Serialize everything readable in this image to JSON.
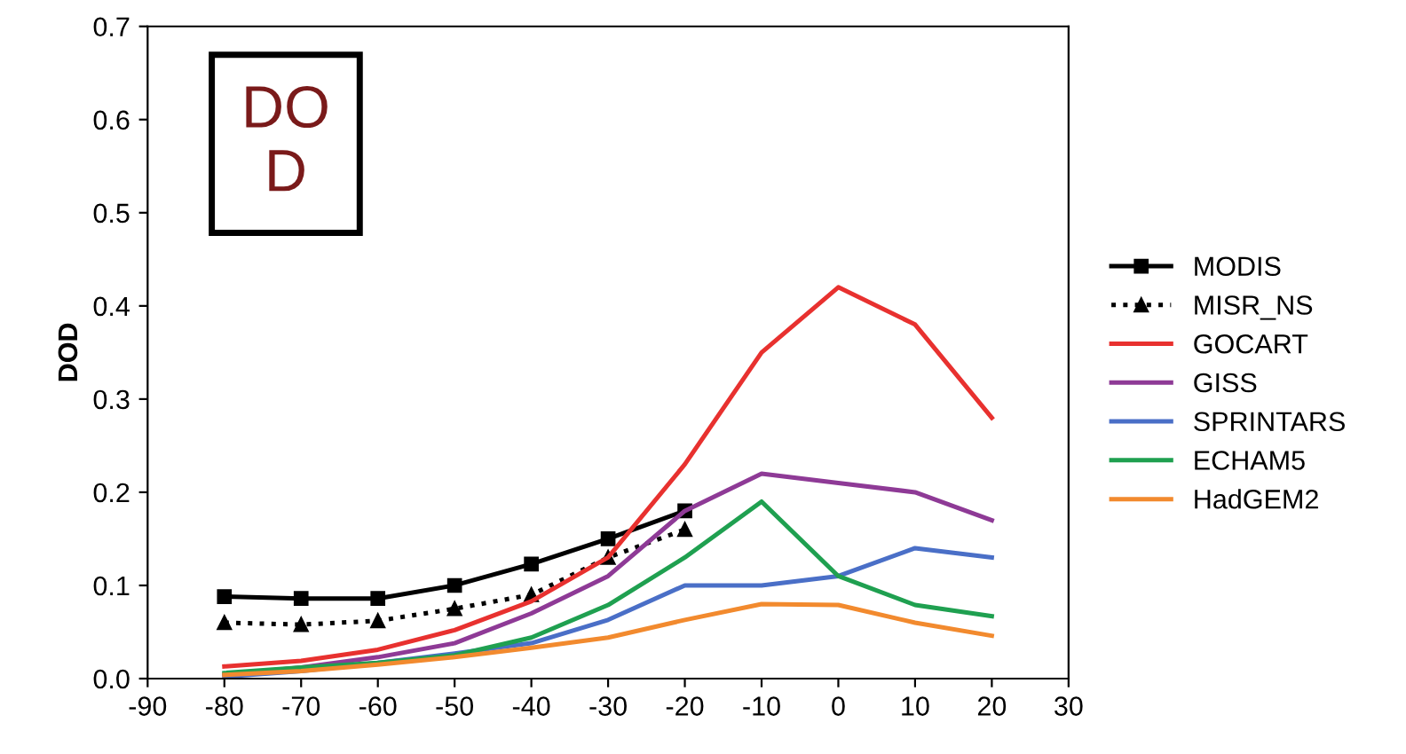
{
  "chart_data": {
    "type": "line",
    "ylabel": "DOD",
    "x": [
      -80,
      -70,
      -60,
      -50,
      -40,
      -30,
      -20,
      -10,
      0,
      10,
      20
    ],
    "xlim": [
      -90,
      30
    ],
    "xticks": [
      -90,
      -80,
      -70,
      -60,
      -50,
      -40,
      -30,
      -20,
      -10,
      0,
      10,
      20,
      30
    ],
    "ylim": [
      0,
      0.7
    ],
    "yticks": [
      {
        "value": 0,
        "label": "0.0"
      },
      0.1,
      0.2,
      0.3,
      0.4,
      0.5,
      0.6,
      0.7
    ],
    "grid": false,
    "legend": "right",
    "annotations": [
      "DO\nD"
    ],
    "series": [
      {
        "name": "MODIS",
        "color": "#000000",
        "marker": "square",
        "line_style": "solid",
        "values": [
          0.088,
          0.086,
          0.086,
          0.1,
          0.123,
          0.15,
          0.18,
          null,
          null,
          null,
          null
        ]
      },
      {
        "name": "MISR_NS",
        "color": "#000000",
        "marker": "triangle",
        "line_style": "dotted",
        "values": [
          0.06,
          0.058,
          0.062,
          0.075,
          0.09,
          0.13,
          0.16,
          null,
          null,
          null,
          null
        ]
      },
      {
        "name": "GOCART",
        "color": "#e8312f",
        "values": [
          0.013,
          0.019,
          0.031,
          0.052,
          0.083,
          0.13,
          0.23,
          0.35,
          0.42,
          0.38,
          0.28
        ]
      },
      {
        "name": "GISS",
        "color": "#8e3a96",
        "values": [
          0.004,
          0.012,
          0.023,
          0.038,
          0.07,
          0.11,
          0.18,
          0.22,
          0.21,
          0.2,
          0.17
        ]
      },
      {
        "name": "SPRINTARS",
        "color": "#4a6fc7",
        "values": [
          0.002,
          0.008,
          0.017,
          0.027,
          0.038,
          0.063,
          0.1,
          0.1,
          0.11,
          0.14,
          0.13
        ]
      },
      {
        "name": "ECHAM5",
        "color": "#1fa050",
        "values": [
          0.006,
          0.012,
          0.017,
          0.025,
          0.044,
          0.079,
          0.13,
          0.19,
          0.11,
          0.079,
          0.067
        ]
      },
      {
        "name": "HadGEM2",
        "color": "#f28a2e",
        "values": [
          0.004,
          0.008,
          0.015,
          0.023,
          0.033,
          0.044,
          0.063,
          0.08,
          0.079,
          0.06,
          0.046
        ]
      }
    ]
  }
}
